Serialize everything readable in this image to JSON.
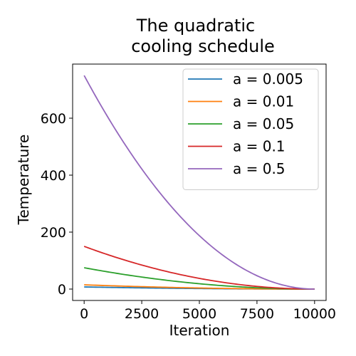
{
  "chart_data": {
    "type": "line",
    "title_lines": [
      "The quadratic",
      "cooling schedule"
    ],
    "xlabel": "Iteration",
    "ylabel": "Temperature",
    "xlim": [
      -500,
      10500
    ],
    "ylim": [
      -40,
      790
    ],
    "x_ticks": [
      0,
      2500,
      5000,
      7500,
      10000
    ],
    "y_ticks": [
      0,
      200,
      400,
      600
    ],
    "x_range": [
      0,
      10000
    ],
    "grid": false,
    "legend_position": "top-right",
    "series": [
      {
        "name": "a = 0.005",
        "color": "#1f77b4",
        "start": 7.5,
        "end": 0
      },
      {
        "name": "a = 0.01",
        "color": "#ff7f0e",
        "start": 15,
        "end": 0
      },
      {
        "name": "a = 0.05",
        "color": "#2ca02c",
        "start": 75,
        "end": 0
      },
      {
        "name": "a = 0.1",
        "color": "#d62728",
        "start": 150,
        "end": 0
      },
      {
        "name": "a = 0.5",
        "color": "#9467bd",
        "start": 750,
        "end": 0
      }
    ]
  }
}
